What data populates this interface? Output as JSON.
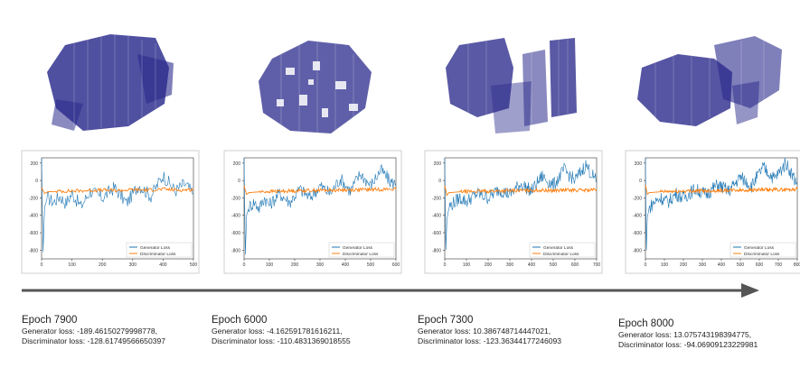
{
  "panels": [
    {
      "epoch_label": "Epoch 7900",
      "generator_text": "Generator loss: -189.46150279998778,",
      "discriminator_text": "Discriminator loss: -128.61749566650397"
    },
    {
      "epoch_label": "Epoch 6000",
      "generator_text": "Generator loss: -4.162591781616211,",
      "discriminator_text": "Discriminator loss: -110.4831369018555"
    },
    {
      "epoch_label": "Epoch 7300",
      "generator_text": "Generator loss: 10.386748714447021,",
      "discriminator_text": "Discriminator loss: -123.36344177246093"
    },
    {
      "epoch_label": "Epoch 8000",
      "generator_text": "Generator loss: 13.075743198394775,",
      "discriminator_text": "Discriminator loss: -94.06909123229981"
    }
  ],
  "colors": {
    "generator": "#1f77b4",
    "discriminator": "#ff7f0e",
    "voxel": "#2a2a8c",
    "arrow": "#555555"
  },
  "chart_data": [
    {
      "type": "line",
      "x_ticks": [
        0,
        100,
        200,
        300,
        400,
        500
      ],
      "y_ticks": [
        200,
        0,
        -200,
        -400,
        -600,
        -800
      ],
      "xlim": [
        0,
        500
      ],
      "ylim": [
        -900,
        260
      ],
      "legend_position": "lower-right",
      "series": [
        {
          "name": "Generator Loss",
          "x": [
            0,
            5,
            10,
            20,
            40,
            60,
            80,
            100,
            130,
            160,
            200,
            240,
            280,
            320,
            360,
            400,
            440,
            470,
            500
          ],
          "values": [
            300,
            -820,
            -300,
            -200,
            -250,
            -180,
            -260,
            -150,
            -300,
            -120,
            -200,
            -80,
            -260,
            -50,
            -180,
            60,
            -120,
            -40,
            -150
          ]
        },
        {
          "name": "Discriminator Loss",
          "x": [
            0,
            10,
            20,
            50,
            100,
            150,
            200,
            250,
            300,
            350,
            400,
            450,
            500
          ],
          "values": [
            -80,
            -150,
            -130,
            -125,
            -120,
            -115,
            -110,
            -115,
            -105,
            -110,
            -100,
            -110,
            -105
          ]
        }
      ]
    },
    {
      "type": "line",
      "x_ticks": [
        0,
        100,
        200,
        300,
        400,
        500,
        600
      ],
      "y_ticks": [
        200,
        0,
        -200,
        -400,
        -600,
        -800
      ],
      "xlim": [
        0,
        600
      ],
      "ylim": [
        -900,
        260
      ],
      "legend_position": "lower-right",
      "series": [
        {
          "name": "Generator Loss",
          "x": [
            0,
            5,
            10,
            20,
            40,
            60,
            80,
            100,
            140,
            180,
            220,
            260,
            300,
            340,
            380,
            420,
            460,
            500,
            540,
            580,
            600
          ],
          "values": [
            300,
            -850,
            -400,
            -300,
            -250,
            -320,
            -200,
            -280,
            -150,
            -250,
            -100,
            -200,
            -60,
            -150,
            20,
            -120,
            80,
            -60,
            120,
            -20,
            -40
          ]
        },
        {
          "name": "Discriminator Loss",
          "x": [
            0,
            10,
            20,
            60,
            120,
            180,
            240,
            300,
            360,
            420,
            480,
            540,
            600
          ],
          "values": [
            -60,
            -160,
            -140,
            -130,
            -125,
            -120,
            -115,
            -112,
            -110,
            -108,
            -105,
            -102,
            -100
          ]
        }
      ]
    },
    {
      "type": "line",
      "x_ticks": [
        0,
        100,
        200,
        300,
        400,
        500,
        600,
        700
      ],
      "y_ticks": [
        200,
        0,
        -200,
        -400,
        -600,
        -800
      ],
      "xlim": [
        0,
        700
      ],
      "ylim": [
        -900,
        260
      ],
      "legend_position": "lower-right",
      "series": [
        {
          "name": "Generator Loss",
          "x": [
            0,
            5,
            10,
            20,
            40,
            70,
            100,
            150,
            200,
            250,
            300,
            350,
            400,
            450,
            500,
            550,
            600,
            650,
            700
          ],
          "values": [
            300,
            -800,
            -450,
            -300,
            -260,
            -200,
            -240,
            -150,
            -200,
            -100,
            -160,
            -40,
            -120,
            50,
            -60,
            120,
            0,
            180,
            -20
          ]
        },
        {
          "name": "Discriminator Loss",
          "x": [
            0,
            10,
            20,
            70,
            140,
            210,
            280,
            350,
            420,
            490,
            560,
            630,
            700
          ],
          "values": [
            -60,
            -170,
            -140,
            -130,
            -125,
            -122,
            -118,
            -115,
            -112,
            -115,
            -110,
            -112,
            -108
          ]
        }
      ]
    },
    {
      "type": "line",
      "x_ticks": [
        0,
        100,
        200,
        300,
        400,
        500,
        600,
        700,
        800
      ],
      "y_ticks": [
        200,
        0,
        -200,
        -400,
        -600,
        -800
      ],
      "xlim": [
        0,
        800
      ],
      "ylim": [
        -900,
        260
      ],
      "legend_position": "lower-right",
      "series": [
        {
          "name": "Generator Loss",
          "x": [
            0,
            5,
            10,
            20,
            40,
            80,
            120,
            160,
            200,
            260,
            320,
            380,
            440,
            500,
            560,
            620,
            680,
            740,
            800
          ],
          "values": [
            300,
            -800,
            -420,
            -320,
            -260,
            -200,
            -250,
            -150,
            -200,
            -100,
            -160,
            -50,
            -120,
            40,
            -60,
            150,
            20,
            200,
            -40
          ]
        },
        {
          "name": "Discriminator Loss",
          "x": [
            0,
            10,
            20,
            80,
            160,
            240,
            320,
            400,
            480,
            560,
            640,
            720,
            800
          ],
          "values": [
            -50,
            -160,
            -140,
            -130,
            -125,
            -120,
            -118,
            -115,
            -112,
            -110,
            -108,
            -105,
            -100
          ]
        }
      ]
    }
  ]
}
